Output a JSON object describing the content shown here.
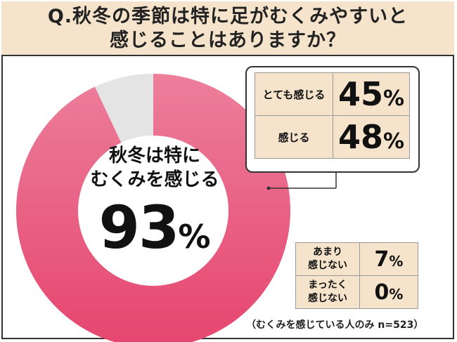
{
  "title": {
    "line1": "Q.秋冬の季節は特に足がむくみやすいと",
    "line2": "感じることはありますか？"
  },
  "colors": {
    "main_pink": "#e8577e",
    "gap_gray": "#e4e4e4",
    "table_bg": "#f5e4cb"
  },
  "chart_data": {
    "type": "pie",
    "series": [
      {
        "label": "とても感じる",
        "value": 45
      },
      {
        "label": "感じる",
        "value": 48
      },
      {
        "label": "あまり感じない",
        "value": 7
      },
      {
        "label": "まったく感じない",
        "value": 0
      }
    ],
    "center_label_1": "秋冬は特に",
    "center_label_2": "むくみを感じる",
    "center_value": "93",
    "center_unit": "%",
    "rows": [
      {
        "label": "とても感じる",
        "value": "45",
        "unit": "%"
      },
      {
        "label": "感じる",
        "value": "48",
        "unit": "%"
      },
      {
        "label_1": "あまり",
        "label_2": "感じない",
        "value": "7",
        "unit": "%"
      },
      {
        "label_1": "まったく",
        "label_2": "感じない",
        "value": "0",
        "unit": "%"
      }
    ],
    "note": "（むくみを感じている人のみ n=523）"
  }
}
